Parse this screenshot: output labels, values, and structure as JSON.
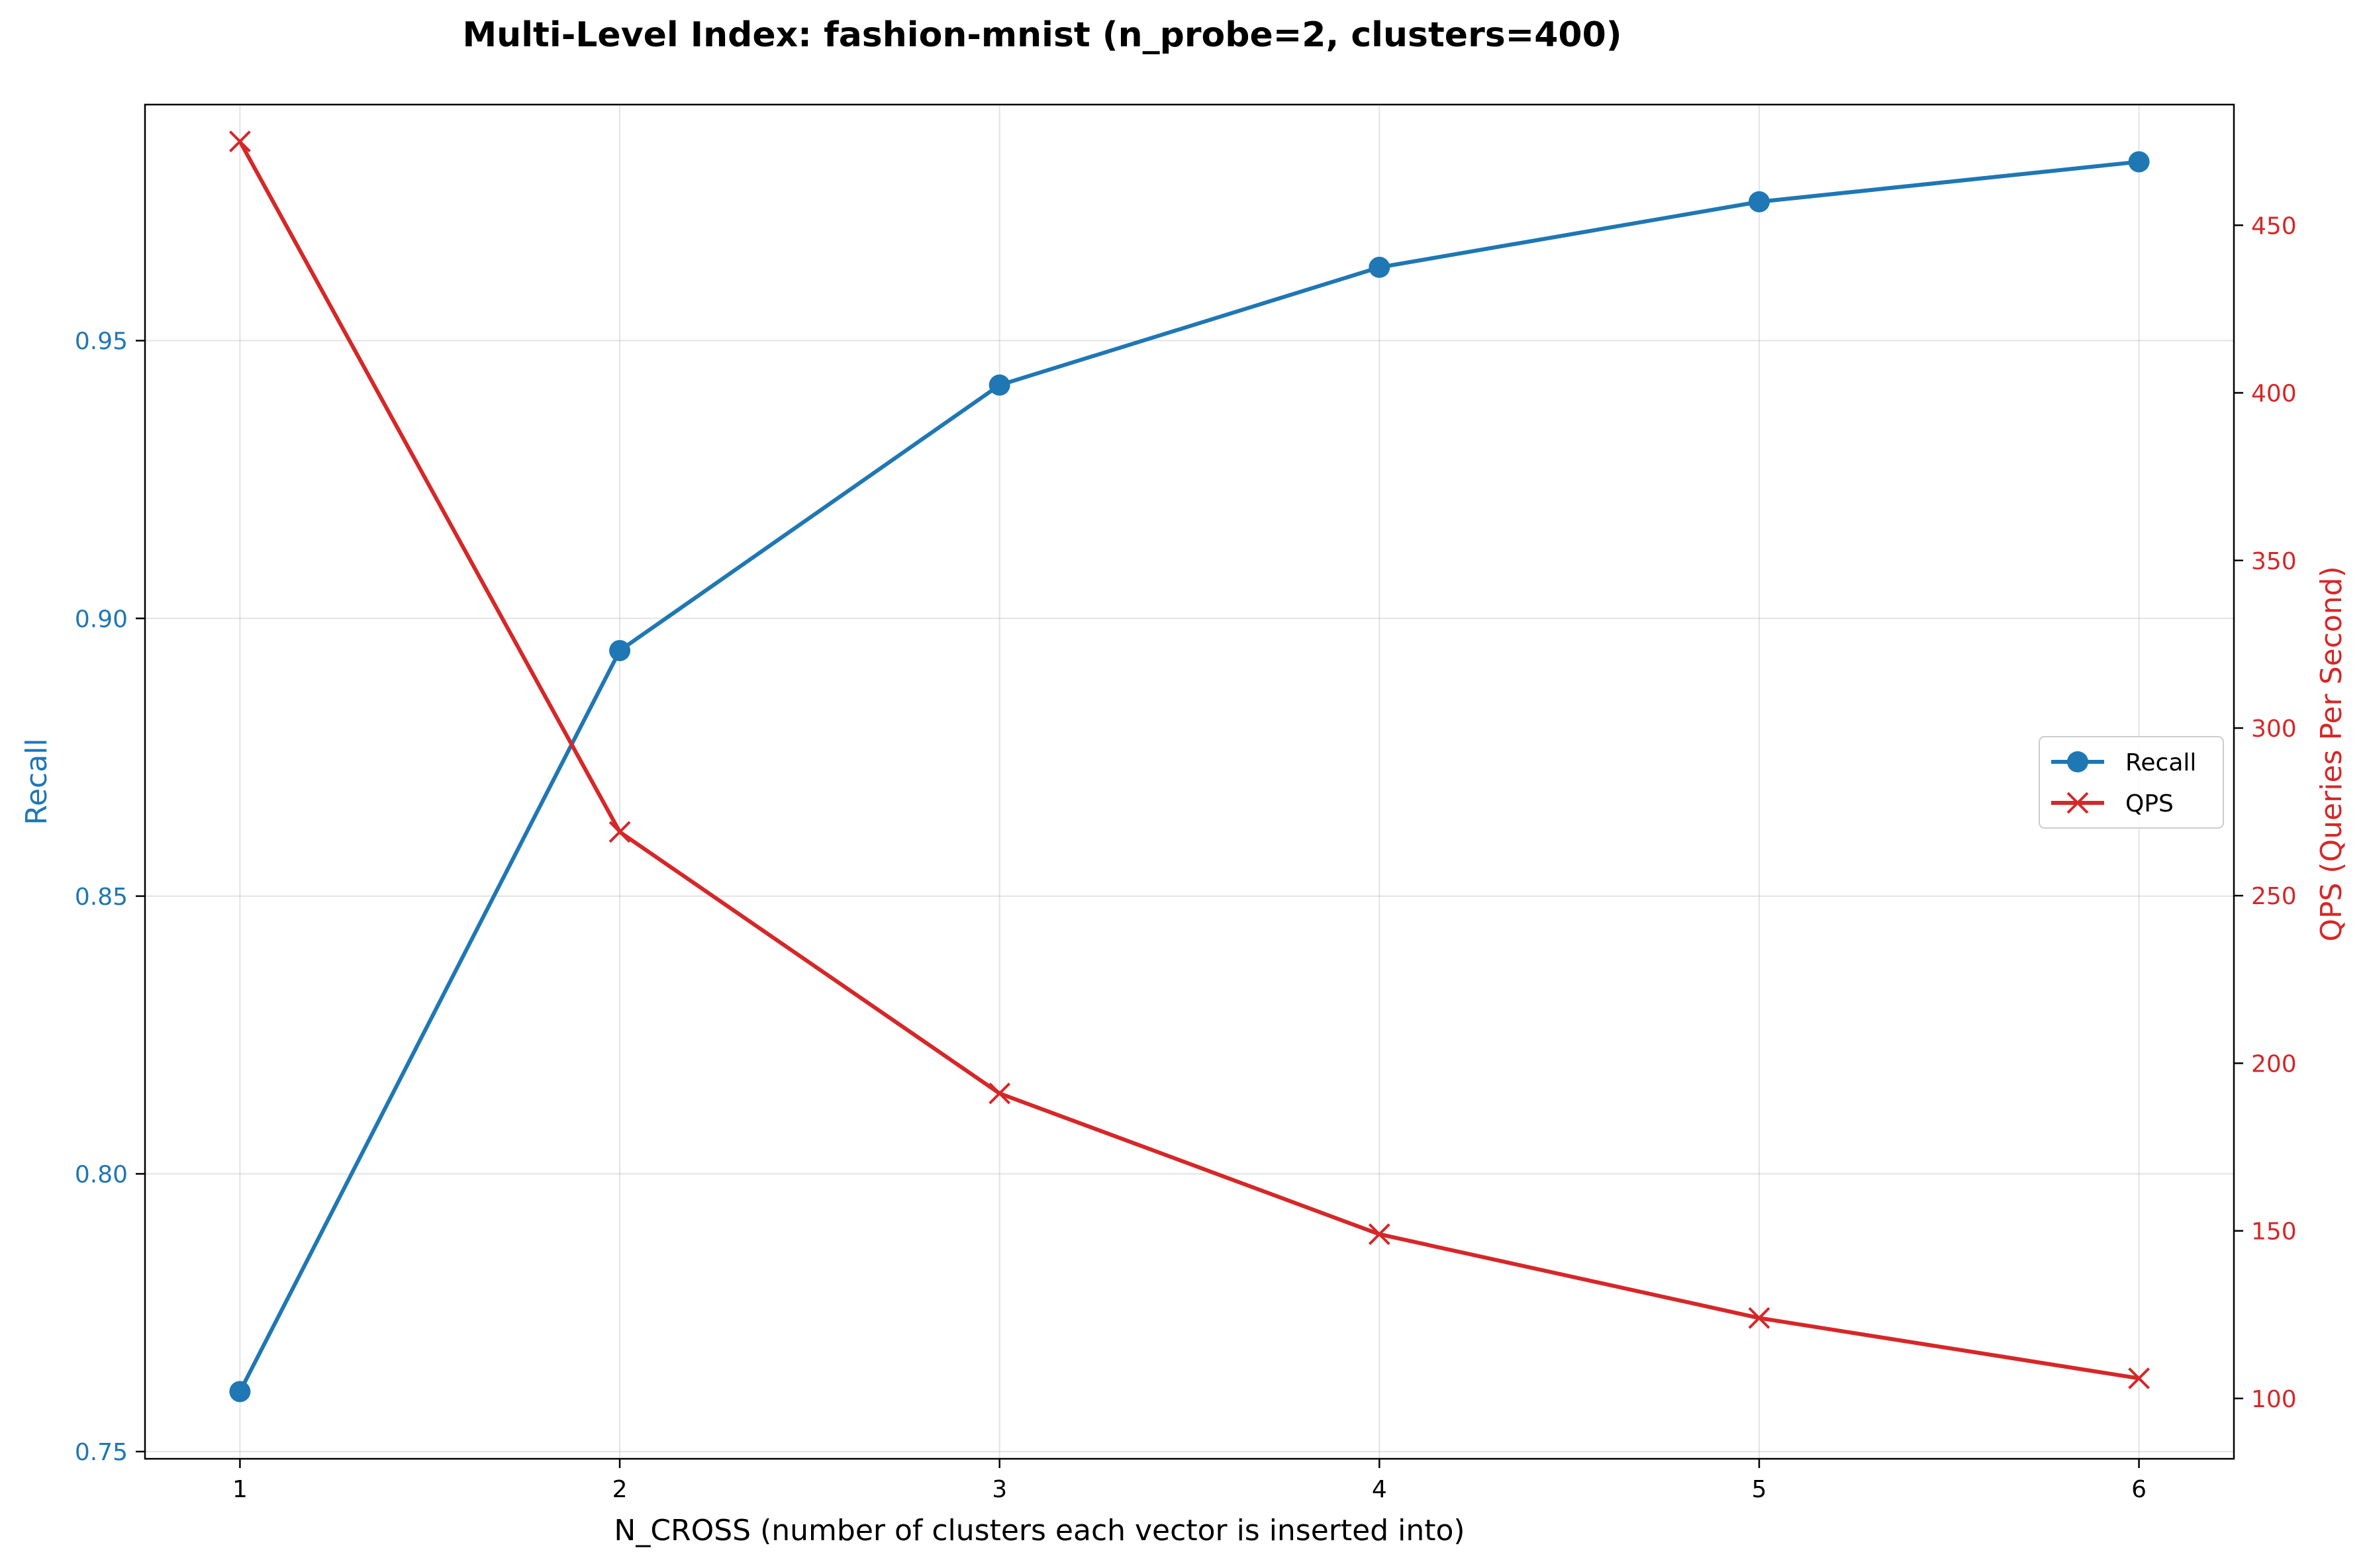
{
  "chart_data": {
    "type": "line",
    "title": "Multi-Level Index: fashion-mnist (n_probe=2, clusters=400)",
    "xlabel": "N_CROSS (number of clusters each vector is inserted into)",
    "ylabel_left": "Recall",
    "ylabel_right": "QPS (Queries Per Second)",
    "x": [
      1,
      2,
      3,
      4,
      5,
      6
    ],
    "xticks": [
      "1",
      "2",
      "3",
      "4",
      "5",
      "6"
    ],
    "xlim": [
      0.75,
      6.25
    ],
    "ylim_left": [
      0.7487,
      0.9925
    ],
    "ylim_right": [
      82,
      486
    ],
    "yticks_left": [
      "0.75",
      "0.80",
      "0.85",
      "0.90",
      "0.95"
    ],
    "yticks_right": [
      "100",
      "150",
      "200",
      "250",
      "300",
      "350",
      "400",
      "450"
    ],
    "grid": true,
    "legend_position": "center-right",
    "series": [
      {
        "name": "Recall",
        "axis": "left",
        "marker": "circle",
        "color": "#1f77b4",
        "values": [
          0.7608,
          0.8942,
          0.942,
          0.9632,
          0.975,
          0.9822
        ]
      },
      {
        "name": "QPS",
        "axis": "right",
        "marker": "x",
        "color": "#d62728",
        "values": [
          475,
          269,
          191,
          149,
          124,
          106
        ]
      }
    ]
  }
}
